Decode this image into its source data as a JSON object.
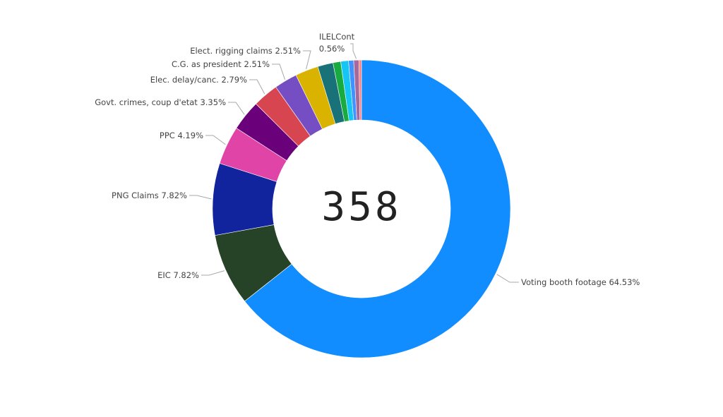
{
  "chart_data": {
    "type": "pie",
    "variant": "donut",
    "center_label": "358",
    "slices": [
      {
        "label": "Voting booth footage",
        "value": 64.53,
        "display": "64.53%",
        "color": "#118DFF"
      },
      {
        "label": "EIC",
        "value": 7.82,
        "display": "7.82%",
        "color": "#264327"
      },
      {
        "label": "PNG Claims",
        "value": 7.82,
        "display": "7.82%",
        "color": "#12239E"
      },
      {
        "label": "PPC",
        "value": 4.19,
        "display": "4.19%",
        "color": "#E044A7"
      },
      {
        "label": "Govt. crimes, coup d'etat",
        "value": 3.35,
        "display": "3.35%",
        "color": "#6B007B"
      },
      {
        "label": "Elec. delay/canc.",
        "value": 2.79,
        "display": "2.79%",
        "color": "#D64550"
      },
      {
        "label": "C.G. as president",
        "value": 2.51,
        "display": "2.51%",
        "color": "#744EC2"
      },
      {
        "label": "Elect. rigging claims",
        "value": 2.51,
        "display": "2.51%",
        "color": "#D9B300"
      },
      {
        "label": "",
        "value": 1.68,
        "display": "",
        "color": "#197278"
      },
      {
        "label": "",
        "value": 0.84,
        "display": "",
        "color": "#1AAB40"
      },
      {
        "label": "",
        "value": 0.84,
        "display": "",
        "color": "#15C6F4"
      },
      {
        "label": "",
        "value": 0.56,
        "display": "",
        "color": "#4092FF"
      },
      {
        "label": "ILELCont",
        "value": 0.56,
        "display": "0.56%",
        "color": "#A66999"
      },
      {
        "label": "",
        "value": 0.28,
        "display": "",
        "color": "#FF8080"
      }
    ]
  }
}
